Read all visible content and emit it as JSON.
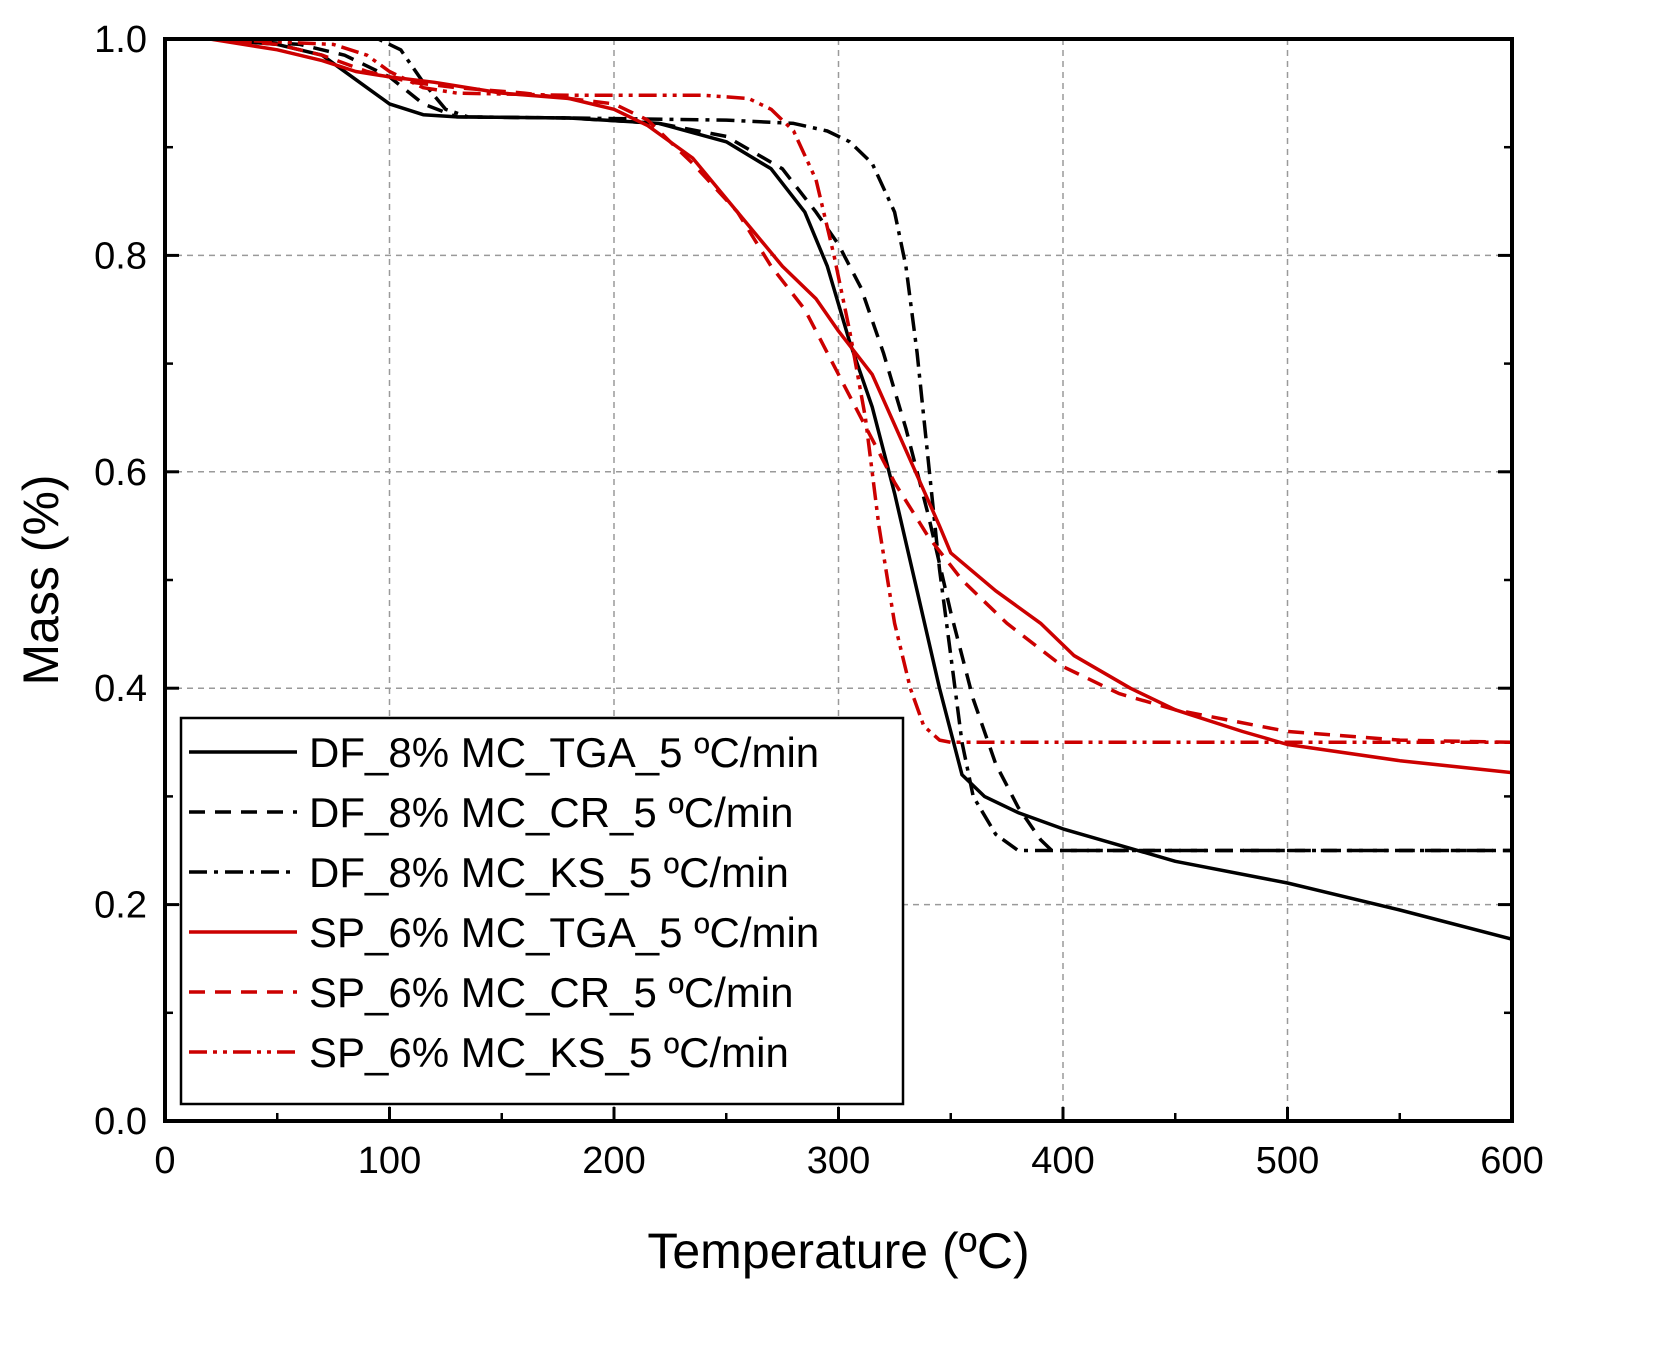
{
  "chart_data": {
    "type": "line",
    "title": "",
    "xlabel": "Temperature (ºC)",
    "ylabel": "Mass (%)",
    "xlim": [
      0,
      600
    ],
    "ylim": [
      0.0,
      1.0
    ],
    "xticks": [
      "0",
      "100",
      "200",
      "300",
      "400",
      "500",
      "600"
    ],
    "yticks": [
      "0.0",
      "0.2",
      "0.4",
      "0.6",
      "0.8",
      "1.0"
    ],
    "grid": true,
    "legend_position": "bottom-left",
    "series": [
      {
        "name": "DF_8% MC_TGA_5 ºC/min",
        "color": "#000000",
        "dash": "solid",
        "points": [
          [
            20,
            1.0
          ],
          [
            50,
            0.995
          ],
          [
            70,
            0.985
          ],
          [
            90,
            0.955
          ],
          [
            100,
            0.94
          ],
          [
            115,
            0.93
          ],
          [
            130,
            0.928
          ],
          [
            180,
            0.927
          ],
          [
            220,
            0.922
          ],
          [
            250,
            0.905
          ],
          [
            270,
            0.88
          ],
          [
            285,
            0.84
          ],
          [
            295,
            0.79
          ],
          [
            305,
            0.72
          ],
          [
            315,
            0.66
          ],
          [
            325,
            0.58
          ],
          [
            335,
            0.49
          ],
          [
            345,
            0.4
          ],
          [
            355,
            0.32
          ],
          [
            365,
            0.3
          ],
          [
            380,
            0.285
          ],
          [
            400,
            0.27
          ],
          [
            450,
            0.24
          ],
          [
            500,
            0.22
          ],
          [
            550,
            0.195
          ],
          [
            600,
            0.168
          ]
        ]
      },
      {
        "name": "DF_8% MC_CR_5 ºC/min",
        "color": "#000000",
        "dash": "dashed",
        "points": [
          [
            20,
            1.0
          ],
          [
            60,
            0.995
          ],
          [
            80,
            0.985
          ],
          [
            100,
            0.965
          ],
          [
            115,
            0.94
          ],
          [
            130,
            0.928
          ],
          [
            180,
            0.927
          ],
          [
            220,
            0.922
          ],
          [
            250,
            0.91
          ],
          [
            275,
            0.88
          ],
          [
            290,
            0.84
          ],
          [
            300,
            0.81
          ],
          [
            310,
            0.77
          ],
          [
            320,
            0.71
          ],
          [
            330,
            0.64
          ],
          [
            340,
            0.56
          ],
          [
            350,
            0.47
          ],
          [
            360,
            0.39
          ],
          [
            370,
            0.33
          ],
          [
            380,
            0.29
          ],
          [
            390,
            0.26
          ],
          [
            395,
            0.25
          ],
          [
            420,
            0.25
          ],
          [
            600,
            0.25
          ]
        ]
      },
      {
        "name": "DF_8% MC_KS_5 ºC/min",
        "color": "#000000",
        "dash": "dashdot",
        "points": [
          [
            20,
            1.0
          ],
          [
            95,
            1.0
          ],
          [
            105,
            0.99
          ],
          [
            115,
            0.96
          ],
          [
            125,
            0.935
          ],
          [
            135,
            0.928
          ],
          [
            180,
            0.927
          ],
          [
            250,
            0.925
          ],
          [
            280,
            0.922
          ],
          [
            295,
            0.915
          ],
          [
            305,
            0.905
          ],
          [
            315,
            0.885
          ],
          [
            325,
            0.84
          ],
          [
            330,
            0.79
          ],
          [
            335,
            0.71
          ],
          [
            340,
            0.61
          ],
          [
            345,
            0.51
          ],
          [
            350,
            0.43
          ],
          [
            355,
            0.35
          ],
          [
            360,
            0.3
          ],
          [
            370,
            0.265
          ],
          [
            380,
            0.25
          ],
          [
            420,
            0.25
          ],
          [
            600,
            0.25
          ]
        ]
      },
      {
        "name": "SP_6% MC_TGA_5 ºC/min",
        "color": "#cc0000",
        "dash": "solid",
        "points": [
          [
            20,
            1.0
          ],
          [
            50,
            0.99
          ],
          [
            70,
            0.98
          ],
          [
            85,
            0.97
          ],
          [
            100,
            0.965
          ],
          [
            120,
            0.96
          ],
          [
            150,
            0.95
          ],
          [
            180,
            0.945
          ],
          [
            200,
            0.935
          ],
          [
            215,
            0.92
          ],
          [
            235,
            0.89
          ],
          [
            255,
            0.84
          ],
          [
            275,
            0.79
          ],
          [
            290,
            0.76
          ],
          [
            300,
            0.73
          ],
          [
            315,
            0.69
          ],
          [
            330,
            0.62
          ],
          [
            345,
            0.55
          ],
          [
            350,
            0.525
          ],
          [
            370,
            0.49
          ],
          [
            390,
            0.46
          ],
          [
            405,
            0.43
          ],
          [
            430,
            0.4
          ],
          [
            450,
            0.38
          ],
          [
            480,
            0.36
          ],
          [
            500,
            0.348
          ],
          [
            550,
            0.333
          ],
          [
            600,
            0.322
          ]
        ]
      },
      {
        "name": "SP_6% MC_CR_5 ºC/min",
        "color": "#cc0000",
        "dash": "dashed",
        "points": [
          [
            20,
            1.0
          ],
          [
            50,
            0.995
          ],
          [
            70,
            0.985
          ],
          [
            90,
            0.97
          ],
          [
            110,
            0.96
          ],
          [
            130,
            0.955
          ],
          [
            160,
            0.95
          ],
          [
            200,
            0.94
          ],
          [
            215,
            0.925
          ],
          [
            235,
            0.885
          ],
          [
            255,
            0.84
          ],
          [
            270,
            0.79
          ],
          [
            285,
            0.75
          ],
          [
            295,
            0.71
          ],
          [
            305,
            0.67
          ],
          [
            315,
            0.63
          ],
          [
            325,
            0.59
          ],
          [
            340,
            0.54
          ],
          [
            355,
            0.5
          ],
          [
            375,
            0.46
          ],
          [
            400,
            0.42
          ],
          [
            425,
            0.395
          ],
          [
            450,
            0.38
          ],
          [
            500,
            0.36
          ],
          [
            550,
            0.352
          ],
          [
            600,
            0.35
          ]
        ]
      },
      {
        "name": "SP_6% MC_KS_5 ºC/min",
        "color": "#cc0000",
        "dash": "dashdotdot",
        "points": [
          [
            20,
            1.0
          ],
          [
            75,
            0.995
          ],
          [
            90,
            0.985
          ],
          [
            100,
            0.97
          ],
          [
            115,
            0.955
          ],
          [
            130,
            0.95
          ],
          [
            180,
            0.948
          ],
          [
            240,
            0.948
          ],
          [
            260,
            0.945
          ],
          [
            270,
            0.935
          ],
          [
            280,
            0.915
          ],
          [
            290,
            0.87
          ],
          [
            298,
            0.8
          ],
          [
            305,
            0.73
          ],
          [
            312,
            0.65
          ],
          [
            318,
            0.55
          ],
          [
            325,
            0.46
          ],
          [
            332,
            0.4
          ],
          [
            338,
            0.365
          ],
          [
            345,
            0.352
          ],
          [
            350,
            0.35
          ],
          [
            600,
            0.35
          ]
        ]
      }
    ]
  }
}
